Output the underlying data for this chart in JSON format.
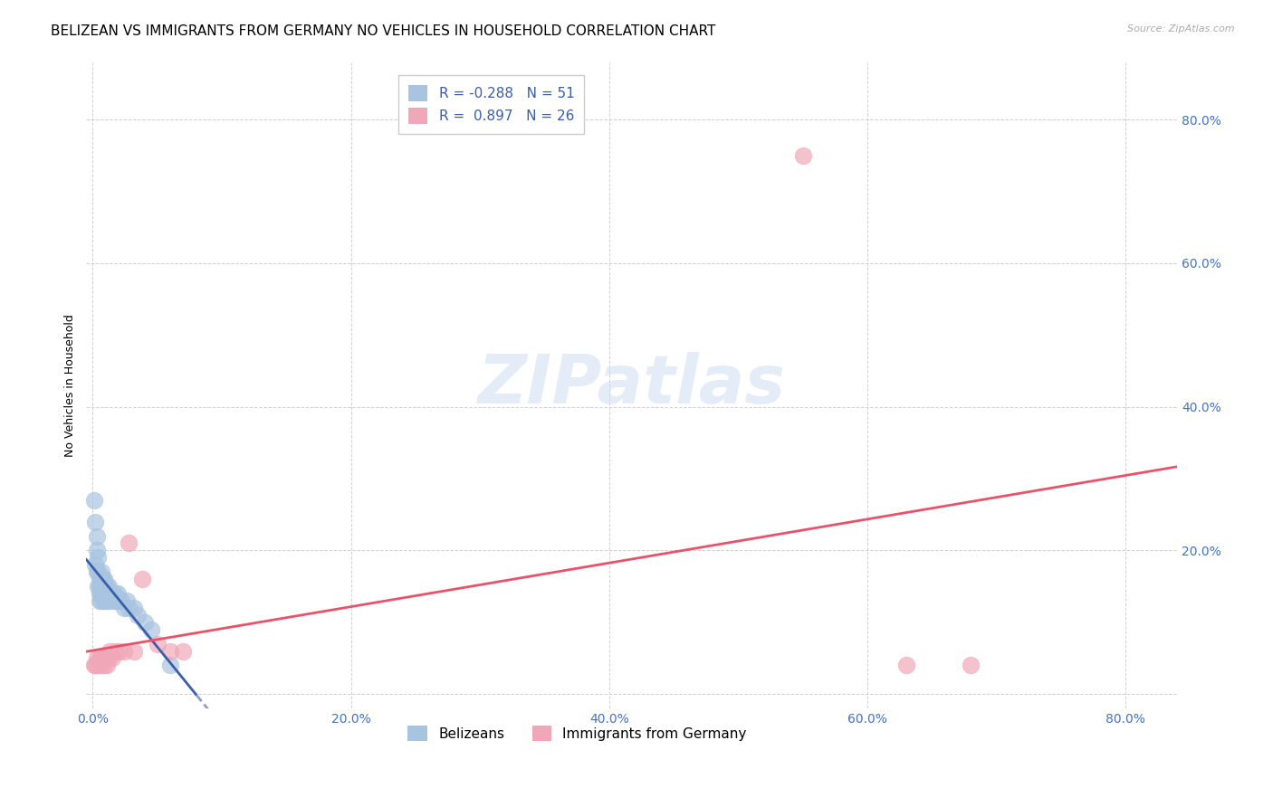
{
  "title": "BELIZEAN VS IMMIGRANTS FROM GERMANY NO VEHICLES IN HOUSEHOLD CORRELATION CHART",
  "source": "Source: ZipAtlas.com",
  "tick_color": "#4472c4",
  "ylabel": "No Vehicles in Household",
  "x_ticks": [
    0.0,
    0.2,
    0.4,
    0.6,
    0.8
  ],
  "y_ticks": [
    0.0,
    0.2,
    0.4,
    0.6,
    0.8
  ],
  "xlim": [
    -0.005,
    0.84
  ],
  "ylim": [
    -0.02,
    0.88
  ],
  "blue_color": "#a8c4e0",
  "pink_color": "#f0a8b8",
  "blue_line_color": "#3a5fa8",
  "pink_line_color": "#e8526a",
  "background_color": "#ffffff",
  "grid_color": "#d0d0d0",
  "watermark": "ZIPatlas",
  "legend_blue_label": "Belizeans",
  "legend_pink_label": "Immigrants from Germany",
  "R_blue": -0.288,
  "N_blue": 51,
  "R_pink": 0.897,
  "N_pink": 26,
  "blue_scatter_x": [
    0.001,
    0.002,
    0.002,
    0.003,
    0.003,
    0.003,
    0.004,
    0.004,
    0.004,
    0.005,
    0.005,
    0.005,
    0.005,
    0.006,
    0.006,
    0.006,
    0.007,
    0.007,
    0.007,
    0.007,
    0.008,
    0.008,
    0.008,
    0.009,
    0.009,
    0.009,
    0.009,
    0.01,
    0.01,
    0.01,
    0.011,
    0.011,
    0.012,
    0.012,
    0.013,
    0.014,
    0.015,
    0.016,
    0.017,
    0.018,
    0.019,
    0.02,
    0.022,
    0.024,
    0.026,
    0.028,
    0.032,
    0.035,
    0.04,
    0.045,
    0.06
  ],
  "blue_scatter_y": [
    0.27,
    0.24,
    0.18,
    0.22,
    0.2,
    0.17,
    0.19,
    0.17,
    0.15,
    0.16,
    0.15,
    0.14,
    0.13,
    0.16,
    0.15,
    0.14,
    0.17,
    0.16,
    0.15,
    0.13,
    0.16,
    0.15,
    0.14,
    0.16,
    0.15,
    0.14,
    0.13,
    0.15,
    0.14,
    0.13,
    0.15,
    0.14,
    0.15,
    0.13,
    0.14,
    0.14,
    0.14,
    0.13,
    0.14,
    0.13,
    0.14,
    0.13,
    0.13,
    0.12,
    0.13,
    0.12,
    0.12,
    0.11,
    0.1,
    0.09,
    0.04
  ],
  "pink_scatter_x": [
    0.001,
    0.002,
    0.003,
    0.004,
    0.005,
    0.006,
    0.007,
    0.008,
    0.009,
    0.01,
    0.011,
    0.012,
    0.013,
    0.015,
    0.017,
    0.02,
    0.024,
    0.028,
    0.032,
    0.038,
    0.05,
    0.06,
    0.07,
    0.55,
    0.63,
    0.68
  ],
  "pink_scatter_y": [
    0.04,
    0.04,
    0.05,
    0.04,
    0.05,
    0.04,
    0.05,
    0.05,
    0.04,
    0.05,
    0.04,
    0.05,
    0.06,
    0.05,
    0.06,
    0.06,
    0.06,
    0.21,
    0.06,
    0.16,
    0.07,
    0.06,
    0.06,
    0.75,
    0.04,
    0.04
  ],
  "title_fontsize": 11,
  "axis_fontsize": 10,
  "label_fontsize": 9
}
